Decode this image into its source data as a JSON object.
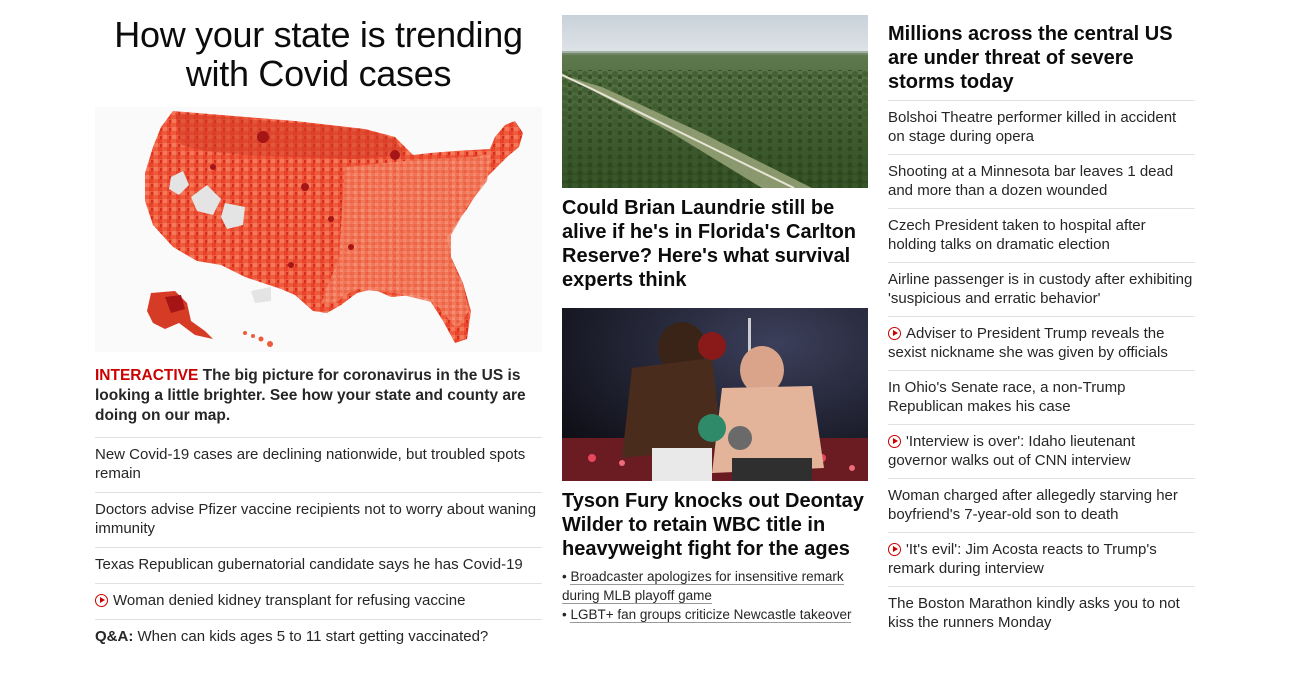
{
  "col1": {
    "title": "How your state is trending with Covid cases",
    "lead": {
      "kicker": "INTERACTIVE",
      "text": " The big picture for coronavirus in the US is looking a little brighter. See how your state and county are doing on our map."
    },
    "items": [
      {
        "text": "New Covid-19 cases are declining nationwide, but troubled spots remain"
      },
      {
        "text": "Doctors advise Pfizer vaccine recipients not to worry about waning immunity"
      },
      {
        "text": "Texas Republican gubernatorial candidate says he has Covid-19"
      },
      {
        "text": "Woman denied kidney transplant for refusing vaccine",
        "video": true
      }
    ],
    "qa": {
      "label": "Q&A:",
      "text": " When can kids ages 5 to 11 start getting vaccinated?"
    }
  },
  "col2": {
    "story1": {
      "image": "forest-aerial-photo",
      "headline": "Could Brian Laundrie still be alive if he's in Florida's Carlton Reserve? Here's what survival experts think"
    },
    "story2": {
      "image": "boxing-match-photo",
      "headline": "Tyson Fury knocks out Deontay Wilder to retain WBC title in heavyweight fight for the ages",
      "links": [
        "Broadcaster apologizes for insensitive remark during MLB playoff game",
        "LGBT+ fan groups criticize Newcastle takeover"
      ]
    }
  },
  "col3": {
    "headline": "Millions across the central US are under threat of severe storms today",
    "items": [
      {
        "text": "Bolshoi Theatre performer killed in accident on stage during opera"
      },
      {
        "text": "Shooting at a Minnesota bar leaves 1 dead and more than a dozen wounded"
      },
      {
        "text": "Czech President taken to hospital after holding talks on dramatic election"
      },
      {
        "text": "Airline passenger is in custody after exhibiting 'suspicious and erratic behavior'"
      },
      {
        "text": "Adviser to President Trump reveals the sexist nickname she was given by officials",
        "video": true
      },
      {
        "text": "In Ohio's Senate race, a non-Trump Republican makes his case"
      },
      {
        "text": "'Interview is over': Idaho lieutenant governor walks out of CNN interview",
        "video": true
      },
      {
        "text": "Woman charged after allegedly starving her boyfriend's 7-year-old son to death"
      },
      {
        "text": "'It's evil': Jim Acosta reacts to Trump's remark during interview",
        "video": true
      },
      {
        "text": "The Boston Marathon kindly asks you to not kiss the runners Monday"
      }
    ]
  },
  "colors": {
    "accent": "#cc0000",
    "text": "#262626",
    "divider": "#e1e1e1"
  }
}
